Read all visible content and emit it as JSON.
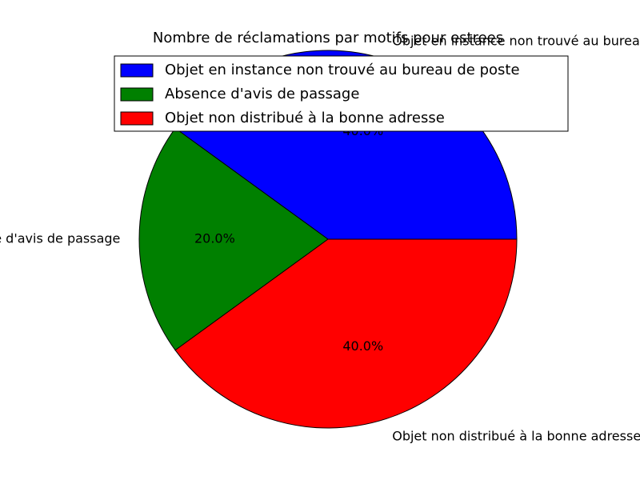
{
  "chart_data": {
    "type": "pie",
    "title": "Nombre de réclamations par motifs pour estrees",
    "slices": [
      {
        "label": "Objet en instance non trouvé au bureau de poste",
        "value": 40.0,
        "pct_label": "40.0%",
        "color": "#0000ff"
      },
      {
        "label": "Absence d'avis de passage",
        "value": 20.0,
        "pct_label": "20.0%",
        "color": "#008000"
      },
      {
        "label": "Objet non distribué à la bonne adresse",
        "value": 40.0,
        "pct_label": "40.0%",
        "color": "#ff0000"
      }
    ],
    "start_angle_deg": 0,
    "legend_position": "upper-right"
  }
}
